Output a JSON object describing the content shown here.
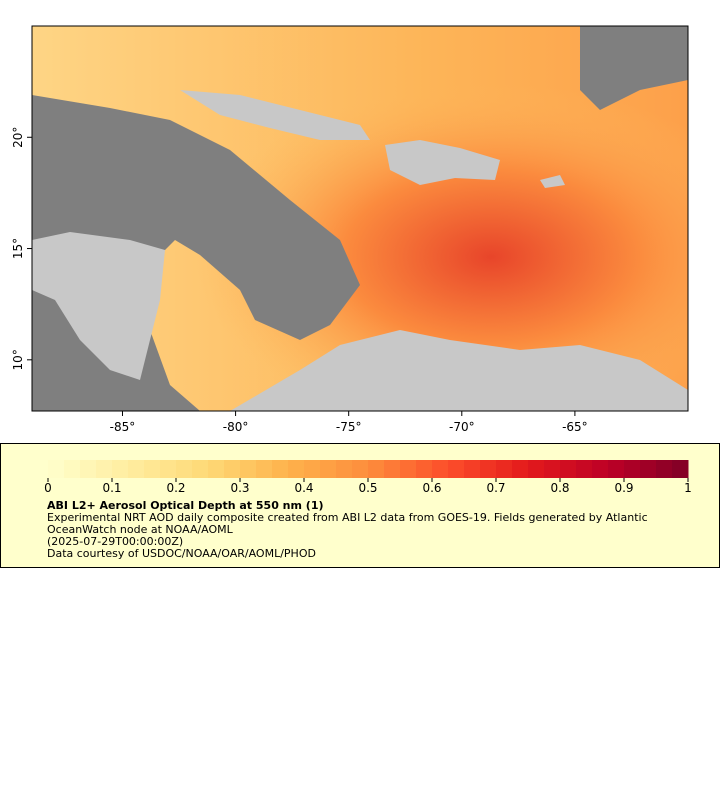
{
  "chart_data": {
    "type": "map",
    "title": "ABI L2+ Aerosol Optical Depth at 550 nm (1)",
    "description": "Experimental NRT AOD daily composite created from ABI L2 data from GOES-19. Fields generated by Atlantic OceanWatch node at NOAA/AOML",
    "date": "(2025-07-29T00:00:00Z)",
    "credit": "Data courtesy of USDOC/NOAA/OAR/AOML/PHOD",
    "xlim": [
      -89,
      -60
    ],
    "ylim": [
      7.7,
      25
    ],
    "xticks": [
      {
        "value": -85,
        "label": "-85°"
      },
      {
        "value": -80,
        "label": "-80°"
      },
      {
        "value": -75,
        "label": "-75°"
      },
      {
        "value": -70,
        "label": "-70°"
      },
      {
        "value": -65,
        "label": "-65°"
      }
    ],
    "yticks": [
      {
        "value": 10,
        "label": "10°"
      },
      {
        "value": 15,
        "label": "15°"
      },
      {
        "value": 20,
        "label": "20°"
      }
    ],
    "colorbar": {
      "lim": [
        0,
        1
      ],
      "ticks": [
        0,
        0.1,
        0.2,
        0.3,
        0.4,
        0.5,
        0.6,
        0.7,
        0.8,
        0.9,
        1
      ],
      "colors": [
        "#ffffcc",
        "#ffeda0",
        "#fed976",
        "#feb24c",
        "#fd8d3c",
        "#fc4e2a",
        "#e31a1c",
        "#bd0026",
        "#800026"
      ]
    }
  }
}
